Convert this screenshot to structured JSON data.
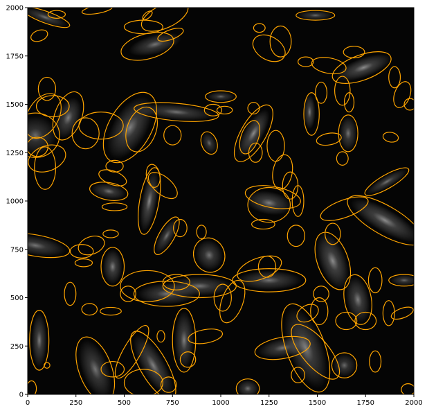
{
  "colors": {
    "background": "#ffffff",
    "plot_background": "#050505",
    "ellipse_stroke": "#ffa500",
    "galaxy_glow": "#d8d8d8",
    "axis": "#000000"
  },
  "chart_data": {
    "type": "image-with-ellipse-overlay",
    "title": "",
    "xlabel": "",
    "ylabel": "",
    "xlim": [
      0,
      2000
    ],
    "ylim": [
      0,
      2000
    ],
    "grid": false,
    "xticks": [
      0,
      250,
      500,
      750,
      1000,
      1250,
      1500,
      1750,
      2000
    ],
    "yticks": [
      0,
      250,
      500,
      750,
      1000,
      1250,
      1500,
      1750,
      2000
    ],
    "ellipses": [
      {
        "x": 95,
        "y": 1950,
        "w": 260,
        "h": 60,
        "angle": -20
      },
      {
        "x": 60,
        "y": 1855,
        "w": 90,
        "h": 55,
        "angle": 20
      },
      {
        "x": 150,
        "y": 1965,
        "w": 90,
        "h": 40,
        "angle": 0
      },
      {
        "x": 360,
        "y": 1990,
        "w": 160,
        "h": 40,
        "angle": 10
      },
      {
        "x": 620,
        "y": 1960,
        "w": 60,
        "h": 30,
        "angle": 40
      },
      {
        "x": 710,
        "y": 1955,
        "w": 260,
        "h": 120,
        "angle": 25
      },
      {
        "x": 620,
        "y": 1800,
        "w": 280,
        "h": 130,
        "angle": 15
      },
      {
        "x": 740,
        "y": 1860,
        "w": 140,
        "h": 50,
        "angle": 20
      },
      {
        "x": 600,
        "y": 1900,
        "w": 200,
        "h": 70,
        "angle": 0
      },
      {
        "x": 1200,
        "y": 1895,
        "w": 60,
        "h": 45,
        "angle": 0
      },
      {
        "x": 1310,
        "y": 1825,
        "w": 110,
        "h": 160,
        "angle": 0
      },
      {
        "x": 1250,
        "y": 1790,
        "w": 180,
        "h": 120,
        "angle": -30
      },
      {
        "x": 1490,
        "y": 1960,
        "w": 200,
        "h": 50,
        "angle": 0
      },
      {
        "x": 1730,
        "y": 1690,
        "w": 320,
        "h": 130,
        "angle": 20
      },
      {
        "x": 1560,
        "y": 1700,
        "w": 180,
        "h": 80,
        "angle": -10
      },
      {
        "x": 1690,
        "y": 1770,
        "w": 110,
        "h": 60,
        "angle": 0
      },
      {
        "x": 1440,
        "y": 1720,
        "w": 80,
        "h": 50,
        "angle": 0
      },
      {
        "x": 1520,
        "y": 1560,
        "w": 60,
        "h": 110,
        "angle": 0
      },
      {
        "x": 1665,
        "y": 1510,
        "w": 50,
        "h": 100,
        "angle": 0
      },
      {
        "x": 1900,
        "y": 1640,
        "w": 60,
        "h": 110,
        "angle": 0
      },
      {
        "x": 1940,
        "y": 1550,
        "w": 80,
        "h": 140,
        "angle": -20
      },
      {
        "x": 1630,
        "y": 1570,
        "w": 80,
        "h": 150,
        "angle": 0
      },
      {
        "x": 1170,
        "y": 1350,
        "w": 130,
        "h": 330,
        "angle": -30
      },
      {
        "x": 1150,
        "y": 1330,
        "w": 90,
        "h": 180,
        "angle": -20
      },
      {
        "x": 1285,
        "y": 1285,
        "w": 90,
        "h": 160,
        "angle": 0
      },
      {
        "x": 1180,
        "y": 1250,
        "w": 70,
        "h": 100,
        "angle": 0
      },
      {
        "x": 940,
        "y": 1300,
        "w": 80,
        "h": 120,
        "angle": 20
      },
      {
        "x": 1470,
        "y": 1450,
        "w": 80,
        "h": 220,
        "angle": 0
      },
      {
        "x": 1660,
        "y": 1350,
        "w": 100,
        "h": 190,
        "angle": 0
      },
      {
        "x": 1560,
        "y": 1320,
        "w": 130,
        "h": 60,
        "angle": 10
      },
      {
        "x": 1980,
        "y": 1500,
        "w": 60,
        "h": 60,
        "angle": 0
      },
      {
        "x": 1880,
        "y": 1330,
        "w": 80,
        "h": 50,
        "angle": -10
      },
      {
        "x": 1860,
        "y": 1100,
        "w": 260,
        "h": 70,
        "angle": 30
      },
      {
        "x": 1630,
        "y": 1220,
        "w": 60,
        "h": 70,
        "angle": 0
      },
      {
        "x": 1850,
        "y": 900,
        "w": 440,
        "h": 150,
        "angle": -30
      },
      {
        "x": 1580,
        "y": 690,
        "w": 160,
        "h": 310,
        "angle": 20
      },
      {
        "x": 1640,
        "y": 960,
        "w": 260,
        "h": 90,
        "angle": 20
      },
      {
        "x": 1580,
        "y": 830,
        "w": 80,
        "h": 110,
        "angle": 0
      },
      {
        "x": 1710,
        "y": 490,
        "w": 140,
        "h": 260,
        "angle": 10
      },
      {
        "x": 1650,
        "y": 380,
        "w": 110,
        "h": 90,
        "angle": 0
      },
      {
        "x": 1750,
        "y": 380,
        "w": 110,
        "h": 90,
        "angle": 0
      },
      {
        "x": 1800,
        "y": 590,
        "w": 70,
        "h": 130,
        "angle": 0
      },
      {
        "x": 1950,
        "y": 590,
        "w": 160,
        "h": 60,
        "angle": 0
      },
      {
        "x": 1940,
        "y": 420,
        "w": 120,
        "h": 50,
        "angle": 20
      },
      {
        "x": 1870,
        "y": 420,
        "w": 60,
        "h": 130,
        "angle": 0
      },
      {
        "x": 1970,
        "y": 25,
        "w": 70,
        "h": 60,
        "angle": 0
      },
      {
        "x": 1800,
        "y": 170,
        "w": 60,
        "h": 110,
        "angle": 0
      },
      {
        "x": 1640,
        "y": 150,
        "w": 130,
        "h": 130,
        "angle": 0
      },
      {
        "x": 1440,
        "y": 240,
        "w": 200,
        "h": 480,
        "angle": 20
      },
      {
        "x": 1490,
        "y": 220,
        "w": 140,
        "h": 350,
        "angle": 40
      },
      {
        "x": 1320,
        "y": 240,
        "w": 290,
        "h": 110,
        "angle": 10
      },
      {
        "x": 1400,
        "y": 100,
        "w": 70,
        "h": 80,
        "angle": 0
      },
      {
        "x": 1450,
        "y": 420,
        "w": 120,
        "h": 80,
        "angle": 30
      },
      {
        "x": 1510,
        "y": 430,
        "w": 90,
        "h": 140,
        "angle": 0
      },
      {
        "x": 1520,
        "y": 520,
        "w": 80,
        "h": 80,
        "angle": 0
      },
      {
        "x": 1270,
        "y": 1020,
        "w": 290,
        "h": 110,
        "angle": -10
      },
      {
        "x": 1250,
        "y": 980,
        "w": 220,
        "h": 180,
        "angle": 0
      },
      {
        "x": 1320,
        "y": 1150,
        "w": 100,
        "h": 180,
        "angle": -10
      },
      {
        "x": 1360,
        "y": 1080,
        "w": 80,
        "h": 140,
        "angle": 0
      },
      {
        "x": 1400,
        "y": 1000,
        "w": 60,
        "h": 160,
        "angle": 0
      },
      {
        "x": 1390,
        "y": 820,
        "w": 90,
        "h": 110,
        "angle": 0
      },
      {
        "x": 1220,
        "y": 880,
        "w": 120,
        "h": 50,
        "angle": 0
      },
      {
        "x": 1240,
        "y": 660,
        "w": 90,
        "h": 110,
        "angle": 0
      },
      {
        "x": 1250,
        "y": 590,
        "w": 380,
        "h": 120,
        "angle": 0
      },
      {
        "x": 1200,
        "y": 650,
        "w": 240,
        "h": 110,
        "angle": 20
      },
      {
        "x": 1010,
        "y": 500,
        "w": 90,
        "h": 140,
        "angle": 0
      },
      {
        "x": 1060,
        "y": 480,
        "w": 110,
        "h": 230,
        "angle": -20
      },
      {
        "x": 890,
        "y": 560,
        "w": 380,
        "h": 120,
        "angle": 0
      },
      {
        "x": 770,
        "y": 580,
        "w": 140,
        "h": 80,
        "angle": 0
      },
      {
        "x": 720,
        "y": 520,
        "w": 340,
        "h": 130,
        "angle": 0
      },
      {
        "x": 620,
        "y": 560,
        "w": 280,
        "h": 160,
        "angle": 0
      },
      {
        "x": 940,
        "y": 720,
        "w": 160,
        "h": 180,
        "angle": 20
      },
      {
        "x": 790,
        "y": 860,
        "w": 70,
        "h": 90,
        "angle": 0
      },
      {
        "x": 900,
        "y": 840,
        "w": 50,
        "h": 70,
        "angle": 0
      },
      {
        "x": 720,
        "y": 820,
        "w": 220,
        "h": 80,
        "angle": 60
      },
      {
        "x": 630,
        "y": 1000,
        "w": 100,
        "h": 350,
        "angle": -10
      },
      {
        "x": 700,
        "y": 1080,
        "w": 180,
        "h": 90,
        "angle": -40
      },
      {
        "x": 650,
        "y": 1130,
        "w": 70,
        "h": 120,
        "angle": 10
      },
      {
        "x": 420,
        "y": 1050,
        "w": 200,
        "h": 90,
        "angle": -10
      },
      {
        "x": 440,
        "y": 1120,
        "w": 150,
        "h": 70,
        "angle": -20
      },
      {
        "x": 450,
        "y": 1180,
        "w": 90,
        "h": 60,
        "angle": 0
      },
      {
        "x": 450,
        "y": 970,
        "w": 130,
        "h": 40,
        "angle": 0
      },
      {
        "x": 530,
        "y": 1380,
        "w": 220,
        "h": 400,
        "angle": -30
      },
      {
        "x": 590,
        "y": 1370,
        "w": 150,
        "h": 240,
        "angle": -20
      },
      {
        "x": 770,
        "y": 1460,
        "w": 440,
        "h": 90,
        "angle": -5
      },
      {
        "x": 750,
        "y": 1340,
        "w": 90,
        "h": 100,
        "angle": 0
      },
      {
        "x": 960,
        "y": 1470,
        "w": 90,
        "h": 60,
        "angle": 0
      },
      {
        "x": 1000,
        "y": 1540,
        "w": 160,
        "h": 60,
        "angle": 0
      },
      {
        "x": 1170,
        "y": 1480,
        "w": 60,
        "h": 60,
        "angle": 0
      },
      {
        "x": 1020,
        "y": 1470,
        "w": 80,
        "h": 40,
        "angle": 0
      },
      {
        "x": 380,
        "y": 1390,
        "w": 230,
        "h": 140,
        "angle": 0
      },
      {
        "x": 300,
        "y": 1350,
        "w": 140,
        "h": 160,
        "angle": 0
      },
      {
        "x": 210,
        "y": 1440,
        "w": 140,
        "h": 260,
        "angle": -20
      },
      {
        "x": 130,
        "y": 1490,
        "w": 170,
        "h": 110,
        "angle": 0
      },
      {
        "x": 80,
        "y": 1440,
        "w": 160,
        "h": 250,
        "angle": -30
      },
      {
        "x": 40,
        "y": 1340,
        "w": 250,
        "h": 230,
        "angle": 0
      },
      {
        "x": 100,
        "y": 1220,
        "w": 200,
        "h": 130,
        "angle": 20
      },
      {
        "x": 90,
        "y": 1170,
        "w": 110,
        "h": 220,
        "angle": 0
      },
      {
        "x": 50,
        "y": 1280,
        "w": 110,
        "h": 100,
        "angle": 0
      },
      {
        "x": 100,
        "y": 1580,
        "w": 90,
        "h": 120,
        "angle": 0
      },
      {
        "x": 40,
        "y": 770,
        "w": 360,
        "h": 110,
        "angle": -10
      },
      {
        "x": 330,
        "y": 770,
        "w": 140,
        "h": 90,
        "angle": 20
      },
      {
        "x": 280,
        "y": 740,
        "w": 120,
        "h": 70,
        "angle": 0
      },
      {
        "x": 290,
        "y": 680,
        "w": 90,
        "h": 40,
        "angle": 0
      },
      {
        "x": 430,
        "y": 830,
        "w": 80,
        "h": 40,
        "angle": 0
      },
      {
        "x": 440,
        "y": 660,
        "w": 120,
        "h": 200,
        "angle": 0
      },
      {
        "x": 220,
        "y": 520,
        "w": 60,
        "h": 120,
        "angle": 0
      },
      {
        "x": 430,
        "y": 430,
        "w": 110,
        "h": 40,
        "angle": 0
      },
      {
        "x": 520,
        "y": 520,
        "w": 80,
        "h": 80,
        "angle": 0
      },
      {
        "x": 540,
        "y": 220,
        "w": 90,
        "h": 310,
        "angle": -30
      },
      {
        "x": 440,
        "y": 130,
        "w": 120,
        "h": 80,
        "angle": 0
      },
      {
        "x": 350,
        "y": 130,
        "w": 170,
        "h": 350,
        "angle": 20
      },
      {
        "x": 60,
        "y": 280,
        "w": 100,
        "h": 310,
        "angle": 0
      },
      {
        "x": 100,
        "y": 150,
        "w": 30,
        "h": 30,
        "angle": 0
      },
      {
        "x": 650,
        "y": 150,
        "w": 140,
        "h": 400,
        "angle": 30
      },
      {
        "x": 600,
        "y": 60,
        "w": 200,
        "h": 140,
        "angle": 0
      },
      {
        "x": 730,
        "y": 50,
        "w": 80,
        "h": 80,
        "angle": 0
      },
      {
        "x": 810,
        "y": 280,
        "w": 120,
        "h": 330,
        "angle": 0
      },
      {
        "x": 920,
        "y": 300,
        "w": 180,
        "h": 70,
        "angle": 10
      },
      {
        "x": 830,
        "y": 180,
        "w": 80,
        "h": 80,
        "angle": 0
      },
      {
        "x": 1140,
        "y": 30,
        "w": 120,
        "h": 100,
        "angle": 0
      },
      {
        "x": 20,
        "y": 30,
        "w": 50,
        "h": 80,
        "angle": 0
      },
      {
        "x": 690,
        "y": 300,
        "w": 40,
        "h": 60,
        "angle": 0
      },
      {
        "x": 320,
        "y": 440,
        "w": 80,
        "h": 60,
        "angle": 0
      }
    ],
    "blobs": [
      {
        "x": 90,
        "y": 1950,
        "rx": 120,
        "ry": 30,
        "angle": -20,
        "b": 0.5
      },
      {
        "x": 660,
        "y": 1810,
        "rx": 140,
        "ry": 50,
        "angle": 15,
        "b": 0.5
      },
      {
        "x": 1740,
        "y": 1690,
        "rx": 150,
        "ry": 50,
        "angle": 20,
        "b": 0.6
      },
      {
        "x": 1460,
        "y": 1460,
        "rx": 30,
        "ry": 90,
        "angle": 0,
        "b": 0.55
      },
      {
        "x": 1170,
        "y": 1350,
        "rx": 50,
        "ry": 140,
        "angle": -30,
        "b": 0.6
      },
      {
        "x": 770,
        "y": 1460,
        "rx": 200,
        "ry": 40,
        "angle": -5,
        "b": 0.5
      },
      {
        "x": 530,
        "y": 1380,
        "rx": 90,
        "ry": 180,
        "angle": -30,
        "b": 0.55
      },
      {
        "x": 210,
        "y": 1430,
        "rx": 60,
        "ry": 110,
        "angle": -20,
        "b": 0.55
      },
      {
        "x": 40,
        "y": 1340,
        "rx": 110,
        "ry": 100,
        "angle": 0,
        "b": 0.45
      },
      {
        "x": 630,
        "y": 1000,
        "rx": 40,
        "ry": 160,
        "angle": -10,
        "b": 0.6
      },
      {
        "x": 420,
        "y": 1050,
        "rx": 90,
        "ry": 40,
        "angle": -10,
        "b": 0.5
      },
      {
        "x": 1250,
        "y": 990,
        "rx": 120,
        "ry": 60,
        "angle": -10,
        "b": 0.55
      },
      {
        "x": 1850,
        "y": 900,
        "rx": 200,
        "ry": 60,
        "angle": -30,
        "b": 0.6
      },
      {
        "x": 1580,
        "y": 690,
        "rx": 70,
        "ry": 150,
        "angle": 20,
        "b": 0.6
      },
      {
        "x": 1710,
        "y": 490,
        "rx": 60,
        "ry": 120,
        "angle": 10,
        "b": 0.55
      },
      {
        "x": 1250,
        "y": 590,
        "rx": 170,
        "ry": 50,
        "angle": 0,
        "b": 0.5
      },
      {
        "x": 890,
        "y": 560,
        "rx": 170,
        "ry": 50,
        "angle": 0,
        "b": 0.5
      },
      {
        "x": 720,
        "y": 520,
        "rx": 150,
        "ry": 55,
        "angle": 0,
        "b": 0.5
      },
      {
        "x": 940,
        "y": 720,
        "rx": 70,
        "ry": 80,
        "angle": 20,
        "b": 0.5
      },
      {
        "x": 720,
        "y": 820,
        "rx": 100,
        "ry": 35,
        "angle": 60,
        "b": 0.5
      },
      {
        "x": 440,
        "y": 660,
        "rx": 50,
        "ry": 90,
        "angle": 0,
        "b": 0.55
      },
      {
        "x": 40,
        "y": 770,
        "rx": 160,
        "ry": 50,
        "angle": -10,
        "b": 0.5
      },
      {
        "x": 60,
        "y": 280,
        "rx": 40,
        "ry": 140,
        "angle": 0,
        "b": 0.55
      },
      {
        "x": 350,
        "y": 130,
        "rx": 70,
        "ry": 160,
        "angle": 20,
        "b": 0.5
      },
      {
        "x": 650,
        "y": 150,
        "rx": 60,
        "ry": 180,
        "angle": 30,
        "b": 0.55
      },
      {
        "x": 810,
        "y": 280,
        "rx": 50,
        "ry": 150,
        "angle": 0,
        "b": 0.55
      },
      {
        "x": 1440,
        "y": 240,
        "rx": 90,
        "ry": 220,
        "angle": 20,
        "b": 0.55
      },
      {
        "x": 1320,
        "y": 240,
        "rx": 130,
        "ry": 50,
        "angle": 10,
        "b": 0.5
      },
      {
        "x": 1660,
        "y": 1350,
        "rx": 45,
        "ry": 90,
        "angle": 0,
        "b": 0.5
      },
      {
        "x": 1860,
        "y": 1100,
        "rx": 120,
        "ry": 30,
        "angle": 30,
        "b": 0.5
      },
      {
        "x": 1000,
        "y": 1540,
        "rx": 70,
        "ry": 25,
        "angle": 0,
        "b": 0.45
      },
      {
        "x": 1140,
        "y": 30,
        "rx": 55,
        "ry": 45,
        "angle": 0,
        "b": 0.5
      },
      {
        "x": 1640,
        "y": 150,
        "rx": 60,
        "ry": 60,
        "angle": 0,
        "b": 0.45
      },
      {
        "x": 940,
        "y": 1300,
        "rx": 35,
        "ry": 55,
        "angle": 20,
        "b": 0.45
      },
      {
        "x": 1490,
        "y": 1960,
        "rx": 90,
        "ry": 25,
        "angle": 0,
        "b": 0.45
      },
      {
        "x": 1950,
        "y": 590,
        "rx": 70,
        "ry": 28,
        "angle": 0,
        "b": 0.45
      }
    ]
  }
}
